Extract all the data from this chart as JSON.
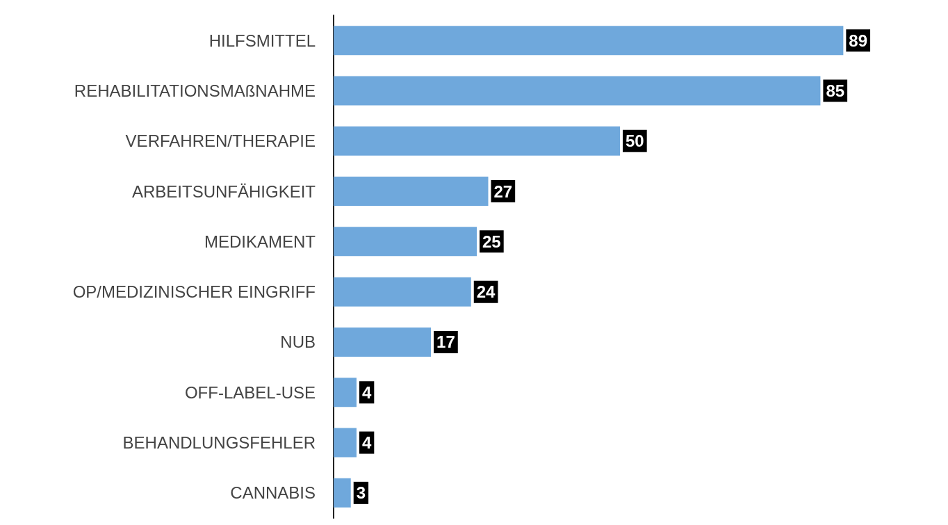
{
  "chart_data": {
    "type": "bar",
    "orientation": "horizontal",
    "categories": [
      "HILFSMITTEL",
      "REHABILITATIONSMAßNAHME",
      "VERFAHREN/THERAPIE",
      "ARBEITSUNFÄHIGKEIT",
      "MEDIKAMENT",
      "OP/MEDIZINISCHER EINGRIFF",
      "NUB",
      "OFF-LABEL-USE",
      "BEHANDLUNGSFEHLER",
      "CANNABIS"
    ],
    "values": [
      89,
      85,
      50,
      27,
      25,
      24,
      17,
      4,
      4,
      3
    ],
    "color": "#6fa8dc",
    "data_labels": true,
    "tick_labels": "y"
  }
}
